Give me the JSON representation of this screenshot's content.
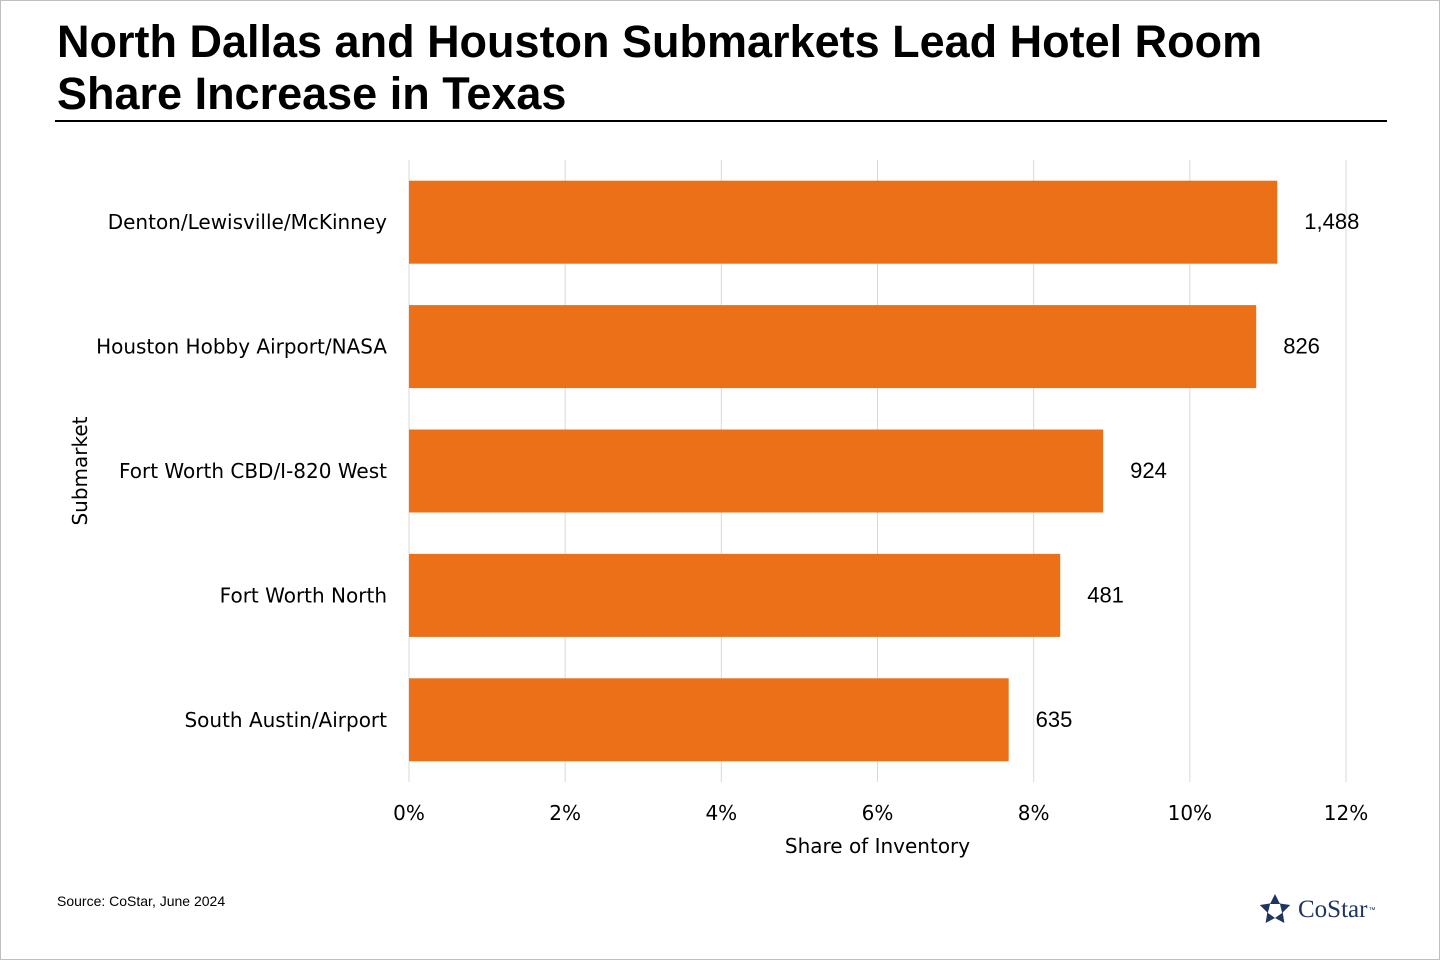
{
  "title": "North Dallas and Houston Submarkets Lead Hotel Room Share Increase in Texas",
  "source": "Source: CoStar, June 2024",
  "logo": {
    "name": "CoStar",
    "tm": "™",
    "color": "#1e3562"
  },
  "colors": {
    "bar": "#ec7018",
    "grid": "#d9d9d9"
  },
  "chart_data": {
    "type": "bar",
    "orientation": "horizontal",
    "categories": [
      "Denton/Lewisville/McKinney",
      "Houston Hobby Airport/NASA",
      "Fort Worth CBD/I-820 West",
      "Fort Worth North",
      "South Austin/Airport"
    ],
    "values": [
      11.12,
      10.85,
      8.89,
      8.34,
      7.68
    ],
    "data_labels": [
      "1,488",
      "826",
      "924",
      "481",
      "635"
    ],
    "xlabel": "Share of Inventory",
    "ylabel": "Submarket",
    "xlim": [
      0,
      12
    ],
    "xticks": [
      0,
      2,
      4,
      6,
      8,
      10,
      12
    ],
    "xtick_labels": [
      "0%",
      "2%",
      "4%",
      "6%",
      "8%",
      "10%",
      "12%"
    ],
    "grid": true
  }
}
